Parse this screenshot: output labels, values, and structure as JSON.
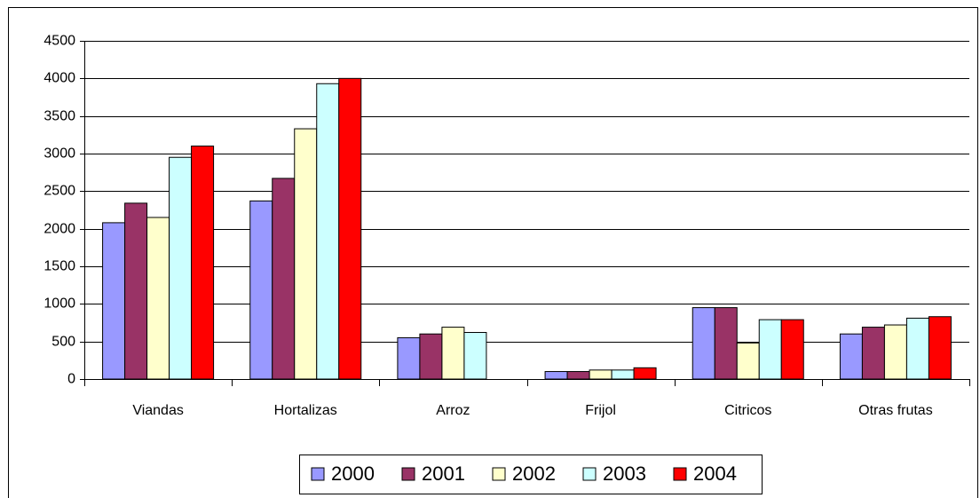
{
  "chart_data": {
    "type": "bar",
    "categories": [
      "Viandas",
      "Hortalizas",
      "Arroz",
      "Frijol",
      "Citricos",
      "Otras frutas"
    ],
    "series": [
      {
        "name": "2000",
        "color": "#9999ff",
        "values": [
          2080,
          2370,
          550,
          100,
          950,
          600
        ]
      },
      {
        "name": "2001",
        "color": "#993366",
        "values": [
          2340,
          2670,
          600,
          100,
          950,
          690
        ]
      },
      {
        "name": "2002",
        "color": "#ffffcc",
        "values": [
          2150,
          3330,
          690,
          120,
          480,
          720
        ]
      },
      {
        "name": "2003",
        "color": "#ccffff",
        "values": [
          2950,
          3930,
          620,
          120,
          790,
          810
        ]
      },
      {
        "name": "2004",
        "color": "#ff0000",
        "values": [
          3100,
          4000,
          null,
          150,
          790,
          830
        ]
      }
    ],
    "ylim": [
      0,
      4500
    ],
    "yticks": [
      0,
      500,
      1000,
      1500,
      2000,
      2500,
      3000,
      3500,
      4000,
      4500
    ],
    "grid": true,
    "legend": "bottom"
  }
}
